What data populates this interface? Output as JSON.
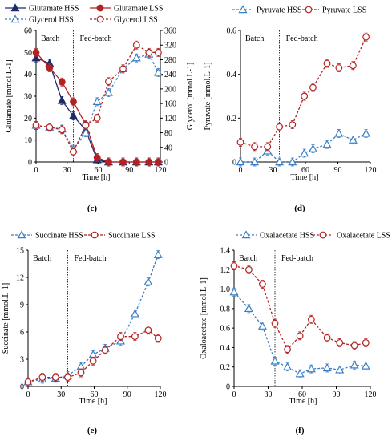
{
  "chart_data": [
    {
      "panel": "c",
      "type": "line",
      "xlabel": "Time [h]",
      "ylabel": "Glutamate [mmol.L-1]",
      "y2label": "Glycerol [mmol.L-1]",
      "xlim": [
        0,
        120
      ],
      "ylim": [
        0,
        60
      ],
      "y2lim": [
        0,
        360
      ],
      "xticks": [
        0,
        30,
        60,
        90,
        120
      ],
      "yticks": [
        0,
        10,
        20,
        30,
        40,
        50,
        60
      ],
      "y2ticks": [
        0,
        40,
        80,
        120,
        160,
        200,
        240,
        280,
        320,
        360
      ],
      "divider_x": 36,
      "phase_left": "Batch",
      "phase_right": "Fed-batch",
      "series": [
        {
          "name": "Glutamate HSS",
          "axis": "left",
          "color": "#1f2a6b",
          "marker": "triangle-filled",
          "line": "solid",
          "x": [
            0,
            13,
            25,
            36,
            48,
            59,
            70,
            84,
            97,
            109,
            118
          ],
          "y": [
            47.5,
            45,
            28,
            21,
            14.5,
            1,
            0,
            0,
            0,
            0,
            0
          ]
        },
        {
          "name": "Glutamate LSS",
          "axis": "left",
          "color": "#b22222",
          "marker": "circle-filled",
          "line": "solid",
          "x": [
            0,
            13,
            25,
            36,
            48,
            59,
            70,
            84,
            97,
            109,
            118
          ],
          "y": [
            50,
            43,
            36.5,
            27.5,
            17,
            2,
            0,
            0,
            0,
            0,
            0
          ]
        },
        {
          "name": "Glycerol HSS",
          "axis": "right",
          "color": "#3b7fc4",
          "marker": "triangle-open",
          "line": "dashed",
          "x": [
            0,
            13,
            25,
            36,
            48,
            59,
            70,
            84,
            97,
            109,
            118
          ],
          "y": [
            100,
            95,
            90,
            35,
            80,
            165,
            190,
            255,
            285,
            295,
            245
          ]
        },
        {
          "name": "Glycerol LSS",
          "axis": "right",
          "color": "#b22222",
          "marker": "circle-open",
          "line": "dashed",
          "x": [
            0,
            13,
            25,
            36,
            48,
            59,
            70,
            84,
            97,
            109,
            118
          ],
          "y": [
            100,
            95,
            88,
            28,
            100,
            120,
            220,
            255,
            320,
            300,
            300
          ]
        }
      ]
    },
    {
      "panel": "d",
      "type": "line",
      "xlabel": "Time [h]",
      "ylabel": "Pyruvate [mmol.L-1]",
      "xlim": [
        0,
        120
      ],
      "ylim": [
        0,
        0.6
      ],
      "xticks": [
        0,
        30,
        60,
        90,
        120
      ],
      "yticks": [
        0,
        0.2,
        0.4,
        0.6
      ],
      "ytick_labels": [
        "0",
        "0.2",
        "0.4",
        "0.6"
      ],
      "divider_x": 36,
      "phase_left": "Batch",
      "phase_right": "Fed-batch",
      "series": [
        {
          "name": "Pyruvate HSS",
          "color": "#3b7fc4",
          "marker": "triangle-open",
          "line": "dashed",
          "x": [
            0,
            13,
            25,
            36,
            48,
            59,
            67,
            80,
            91,
            104,
            116
          ],
          "y": [
            0,
            0,
            0.05,
            0,
            0,
            0.04,
            0.06,
            0.08,
            0.13,
            0.1,
            0.13
          ]
        },
        {
          "name": "Pyruvate LSS",
          "color": "#b22222",
          "marker": "circle-open",
          "line": "dashed",
          "x": [
            0,
            13,
            25,
            36,
            48,
            59,
            67,
            80,
            91,
            104,
            116
          ],
          "y": [
            0.09,
            0.07,
            0.07,
            0.16,
            0.17,
            0.3,
            0.34,
            0.45,
            0.43,
            0.44,
            0.57
          ]
        }
      ]
    },
    {
      "panel": "e",
      "type": "line",
      "xlabel": "Time [h]",
      "ylabel": "Succinate [mmol.L-1]",
      "xlim": [
        0,
        120
      ],
      "ylim": [
        0,
        15
      ],
      "xticks": [
        0,
        30,
        60,
        90,
        120
      ],
      "yticks": [
        0,
        3,
        6,
        9,
        12,
        15
      ],
      "divider_x": 36,
      "phase_left": "Batch",
      "phase_right": "Fed-batch",
      "series": [
        {
          "name": "Succinate HSS",
          "color": "#3b7fc4",
          "marker": "triangle-open",
          "line": "dashed",
          "x": [
            0,
            13,
            25,
            36,
            48,
            59,
            70,
            84,
            97,
            109,
            118
          ],
          "y": [
            0.5,
            0.8,
            0.9,
            1.2,
            2.2,
            3.5,
            4.2,
            5.0,
            8.0,
            11.5,
            14.5
          ]
        },
        {
          "name": "Succinate LSS",
          "color": "#b22222",
          "marker": "circle-open",
          "line": "dashed",
          "x": [
            0,
            13,
            25,
            36,
            48,
            59,
            70,
            84,
            97,
            109,
            118
          ],
          "y": [
            0.5,
            1.0,
            1.0,
            1.0,
            1.5,
            2.8,
            4.0,
            5.5,
            5.5,
            6.2,
            5.3
          ]
        }
      ]
    },
    {
      "panel": "f",
      "type": "line",
      "xlabel": "Time [h]",
      "ylabel": "Oxaloacetate [mmol.L-1]",
      "xlim": [
        0,
        120
      ],
      "ylim": [
        0,
        1.4
      ],
      "xticks": [
        0,
        30,
        60,
        90,
        120
      ],
      "yticks": [
        0,
        0.2,
        0.4,
        0.6,
        0.8,
        1.0,
        1.2,
        1.4
      ],
      "ytick_labels": [
        "0",
        "0.2",
        "0.4",
        "0.6",
        "0.8",
        "1.0",
        "1.2",
        "1.4"
      ],
      "divider_x": 36,
      "phase_left": "Batch",
      "phase_right": "Fed-batch",
      "series": [
        {
          "name": "Oxalacetate HSS",
          "color": "#3b7fc4",
          "marker": "triangle-open",
          "line": "dashed",
          "x": [
            0,
            13,
            25,
            36,
            47,
            58,
            68,
            82,
            93,
            106,
            116
          ],
          "y": [
            0.97,
            0.8,
            0.62,
            0.26,
            0.2,
            0.13,
            0.18,
            0.19,
            0.17,
            0.22,
            0.21
          ]
        },
        {
          "name": "Oxalacetate LSS",
          "color": "#b22222",
          "marker": "circle-open",
          "line": "dashed",
          "x": [
            0,
            13,
            25,
            36,
            47,
            58,
            68,
            82,
            93,
            106,
            116
          ],
          "y": [
            1.24,
            1.2,
            1.05,
            0.65,
            0.38,
            0.52,
            0.69,
            0.5,
            0.45,
            0.42,
            0.45
          ]
        }
      ]
    }
  ],
  "panel_letters": [
    "(c)",
    "(d)",
    "(e)",
    "(f)"
  ]
}
